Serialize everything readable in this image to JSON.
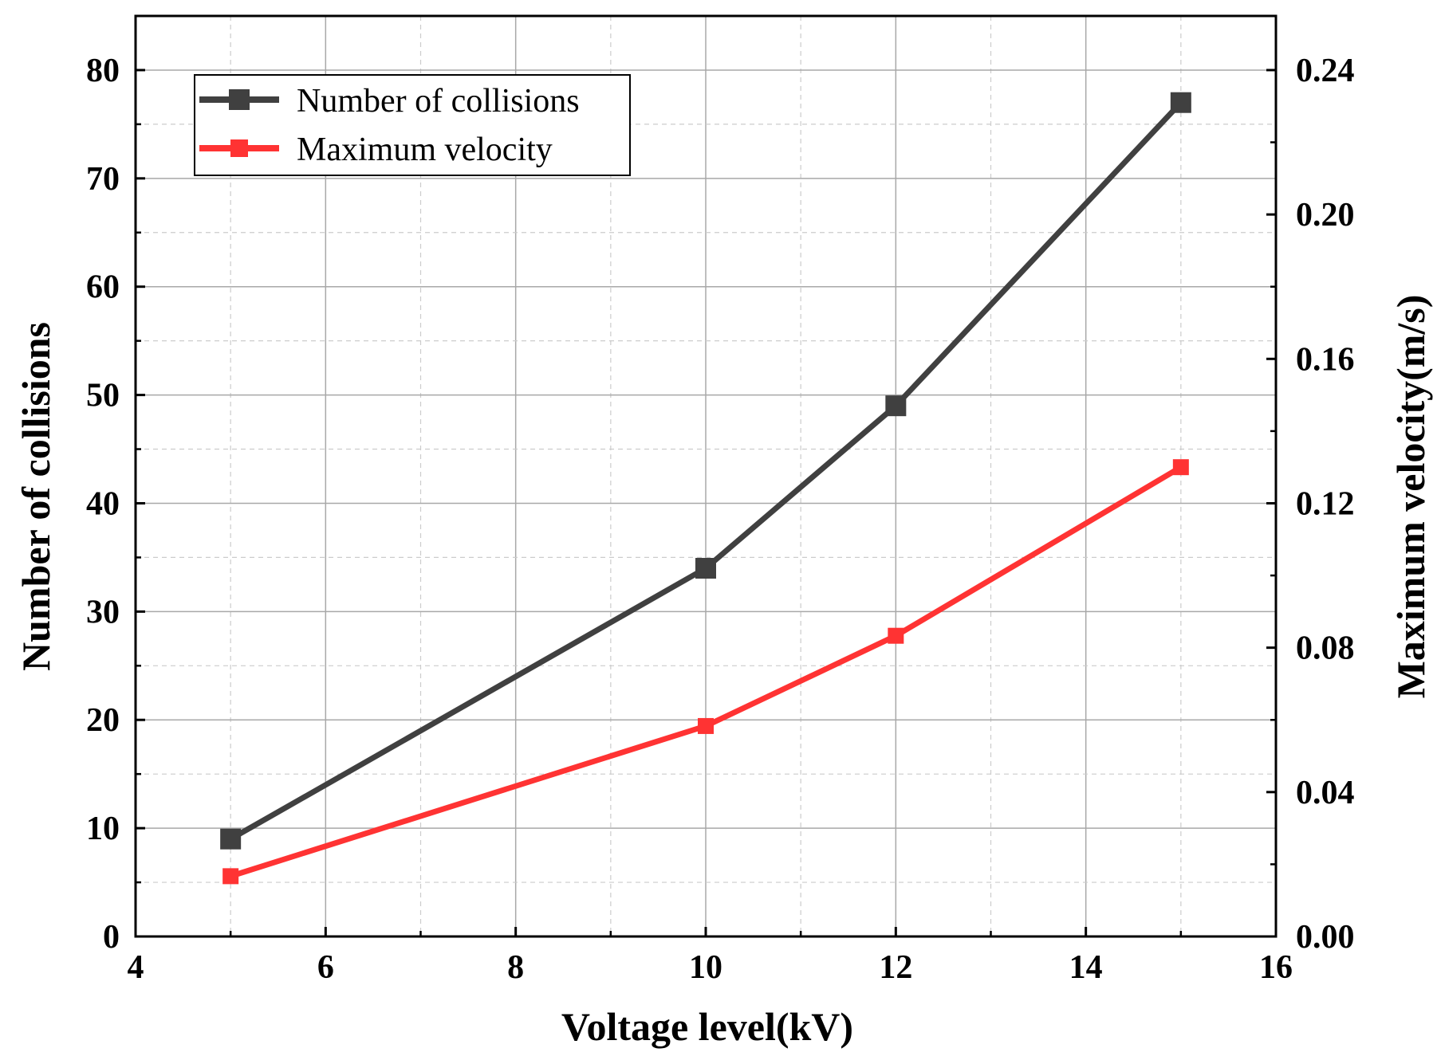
{
  "chart_data": {
    "type": "line",
    "title": "",
    "xlabel": "Voltage level(kV)",
    "ylabel": "Number of collisions",
    "y2label": "Maximum velocity(m/s)",
    "xlim": [
      4,
      16
    ],
    "ylim": [
      0,
      85
    ],
    "y2lim": [
      0,
      0.255
    ],
    "x_ticks": [
      4,
      6,
      8,
      10,
      12,
      14,
      16
    ],
    "x_tick_labels": [
      "4",
      "6",
      "8",
      "10",
      "12",
      "14",
      "16"
    ],
    "y_ticks": [
      0,
      10,
      20,
      30,
      40,
      50,
      60,
      70,
      80
    ],
    "y_tick_labels": [
      "0",
      "10",
      "20",
      "30",
      "40",
      "50",
      "60",
      "70",
      "80"
    ],
    "y2_ticks": [
      0,
      0.04,
      0.08,
      0.12,
      0.16,
      0.2,
      0.24
    ],
    "y2_tick_labels": [
      "0.00",
      "0.04",
      "0.08",
      "0.12",
      "0.16",
      "0.20",
      "0.24"
    ],
    "grid": true,
    "legend_position": "top-left",
    "x": [
      5,
      10,
      12,
      15
    ],
    "series": [
      {
        "name": "Number of collisions",
        "axis": "left",
        "color": "#404040",
        "values": [
          9,
          34,
          49,
          77
        ]
      },
      {
        "name": "Maximum velocity",
        "axis": "right",
        "color": "#ff3333",
        "values": [
          0.0167,
          0.0583,
          0.0833,
          0.13
        ]
      }
    ]
  }
}
